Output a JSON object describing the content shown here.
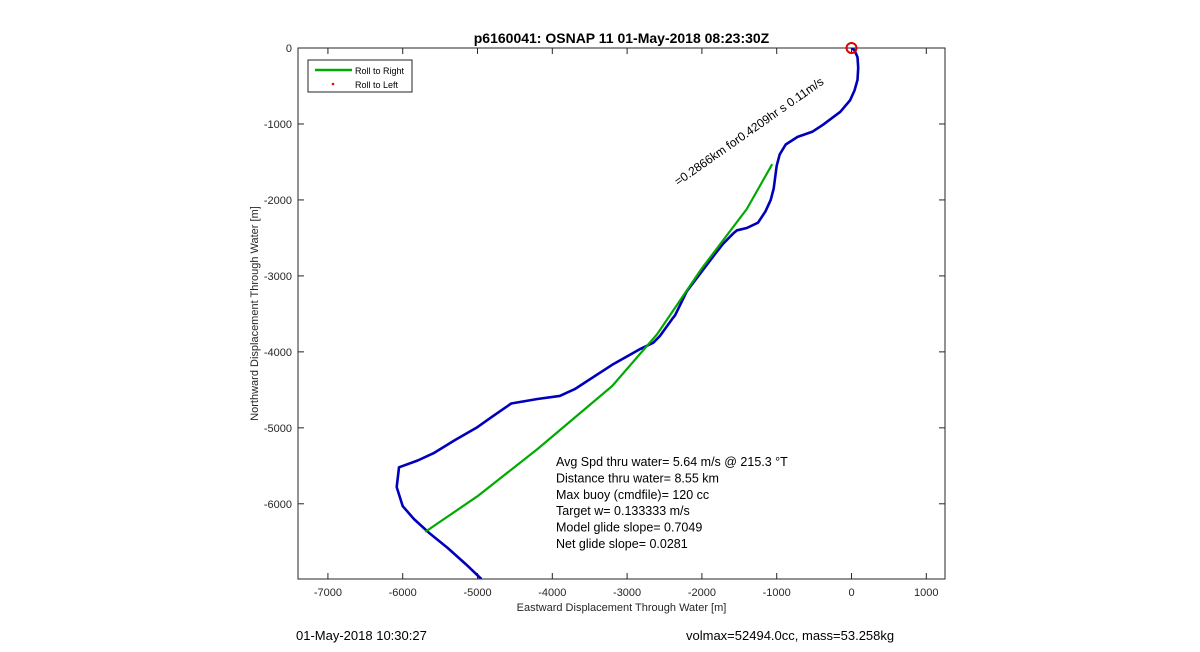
{
  "chart_data": {
    "type": "line",
    "title": "p6160041: OSNAP 11 01-May-2018 08:23:30Z",
    "xlabel": "Eastward Displacement Through Water [m]",
    "ylabel": "Northward Displacement Through Water [m]",
    "xlim": [
      -7400,
      1250
    ],
    "ylim": [
      -6990,
      0
    ],
    "xticks": [
      -7000,
      -6000,
      -5000,
      -4000,
      -3000,
      -2000,
      -1000,
      0,
      1000
    ],
    "yticks": [
      0,
      -1000,
      -2000,
      -3000,
      -4000,
      -5000,
      -6000
    ],
    "grid": false,
    "legend": {
      "position": "top-left",
      "entries": [
        {
          "label": "Roll to Right",
          "color": "#00aa00",
          "style": "line"
        },
        {
          "label": "Roll to Left",
          "color": "#ff0000",
          "style": "point"
        }
      ]
    },
    "series": [
      {
        "color": "#0000bb",
        "x": [
          0,
          40,
          80,
          90,
          80,
          40,
          -20,
          -150,
          -380,
          -520,
          -720,
          -880,
          -960,
          -1000,
          -1020,
          -1040,
          -1080,
          -1150,
          -1250,
          -1400,
          -1530,
          -1580,
          -1620,
          -1720,
          -1830,
          -2000,
          -2200,
          -2360,
          -2400,
          -2560,
          -2650,
          -2840,
          -3200,
          -3700,
          -3900,
          -4200,
          -4550,
          -4800,
          -5000,
          -5300,
          -5580,
          -5800,
          -6050,
          -6080,
          -6000,
          -5850,
          -5650,
          -5400,
          -5150,
          -4950
        ],
        "y": [
          0,
          -30,
          -120,
          -260,
          -420,
          -560,
          -690,
          -840,
          -1010,
          -1100,
          -1170,
          -1270,
          -1400,
          -1550,
          -1700,
          -1850,
          -2000,
          -2150,
          -2300,
          -2370,
          -2400,
          -2440,
          -2480,
          -2580,
          -2720,
          -2940,
          -3200,
          -3520,
          -3570,
          -3790,
          -3880,
          -3970,
          -4170,
          -4490,
          -4580,
          -4620,
          -4680,
          -4850,
          -4990,
          -5160,
          -5330,
          -5430,
          -5520,
          -5780,
          -6030,
          -6200,
          -6380,
          -6580,
          -6800,
          -6990
        ]
      },
      {
        "color": "#00aa00",
        "x": [
          -1060,
          -1400,
          -2000,
          -2600,
          -3200,
          -4200,
          -5000,
          -5700
        ],
        "y": [
          -1530,
          -2120,
          -2900,
          -3770,
          -4450,
          -5280,
          -5900,
          -6370
        ]
      }
    ],
    "marker": {
      "label": "start",
      "x": 0,
      "y": 0,
      "color": "#dd0000"
    },
    "annotation_rotated": "=0.2866km for0.4209hr s 0.11m/s"
  },
  "stats": [
    "Avg Spd thru water=  5.64 m/s @ 215.3 °T",
    "Distance thru water=  8.55 km",
    "Max buoy (cmdfile)= 120 cc",
    "Target w= 0.133333 m/s",
    "Model glide slope= 0.7049",
    "Net glide slope= 0.0281"
  ],
  "footer": {
    "date": "01-May-2018 10:30:27",
    "vol_mass": "volmax=52494.0cc, mass=53.258kg"
  }
}
